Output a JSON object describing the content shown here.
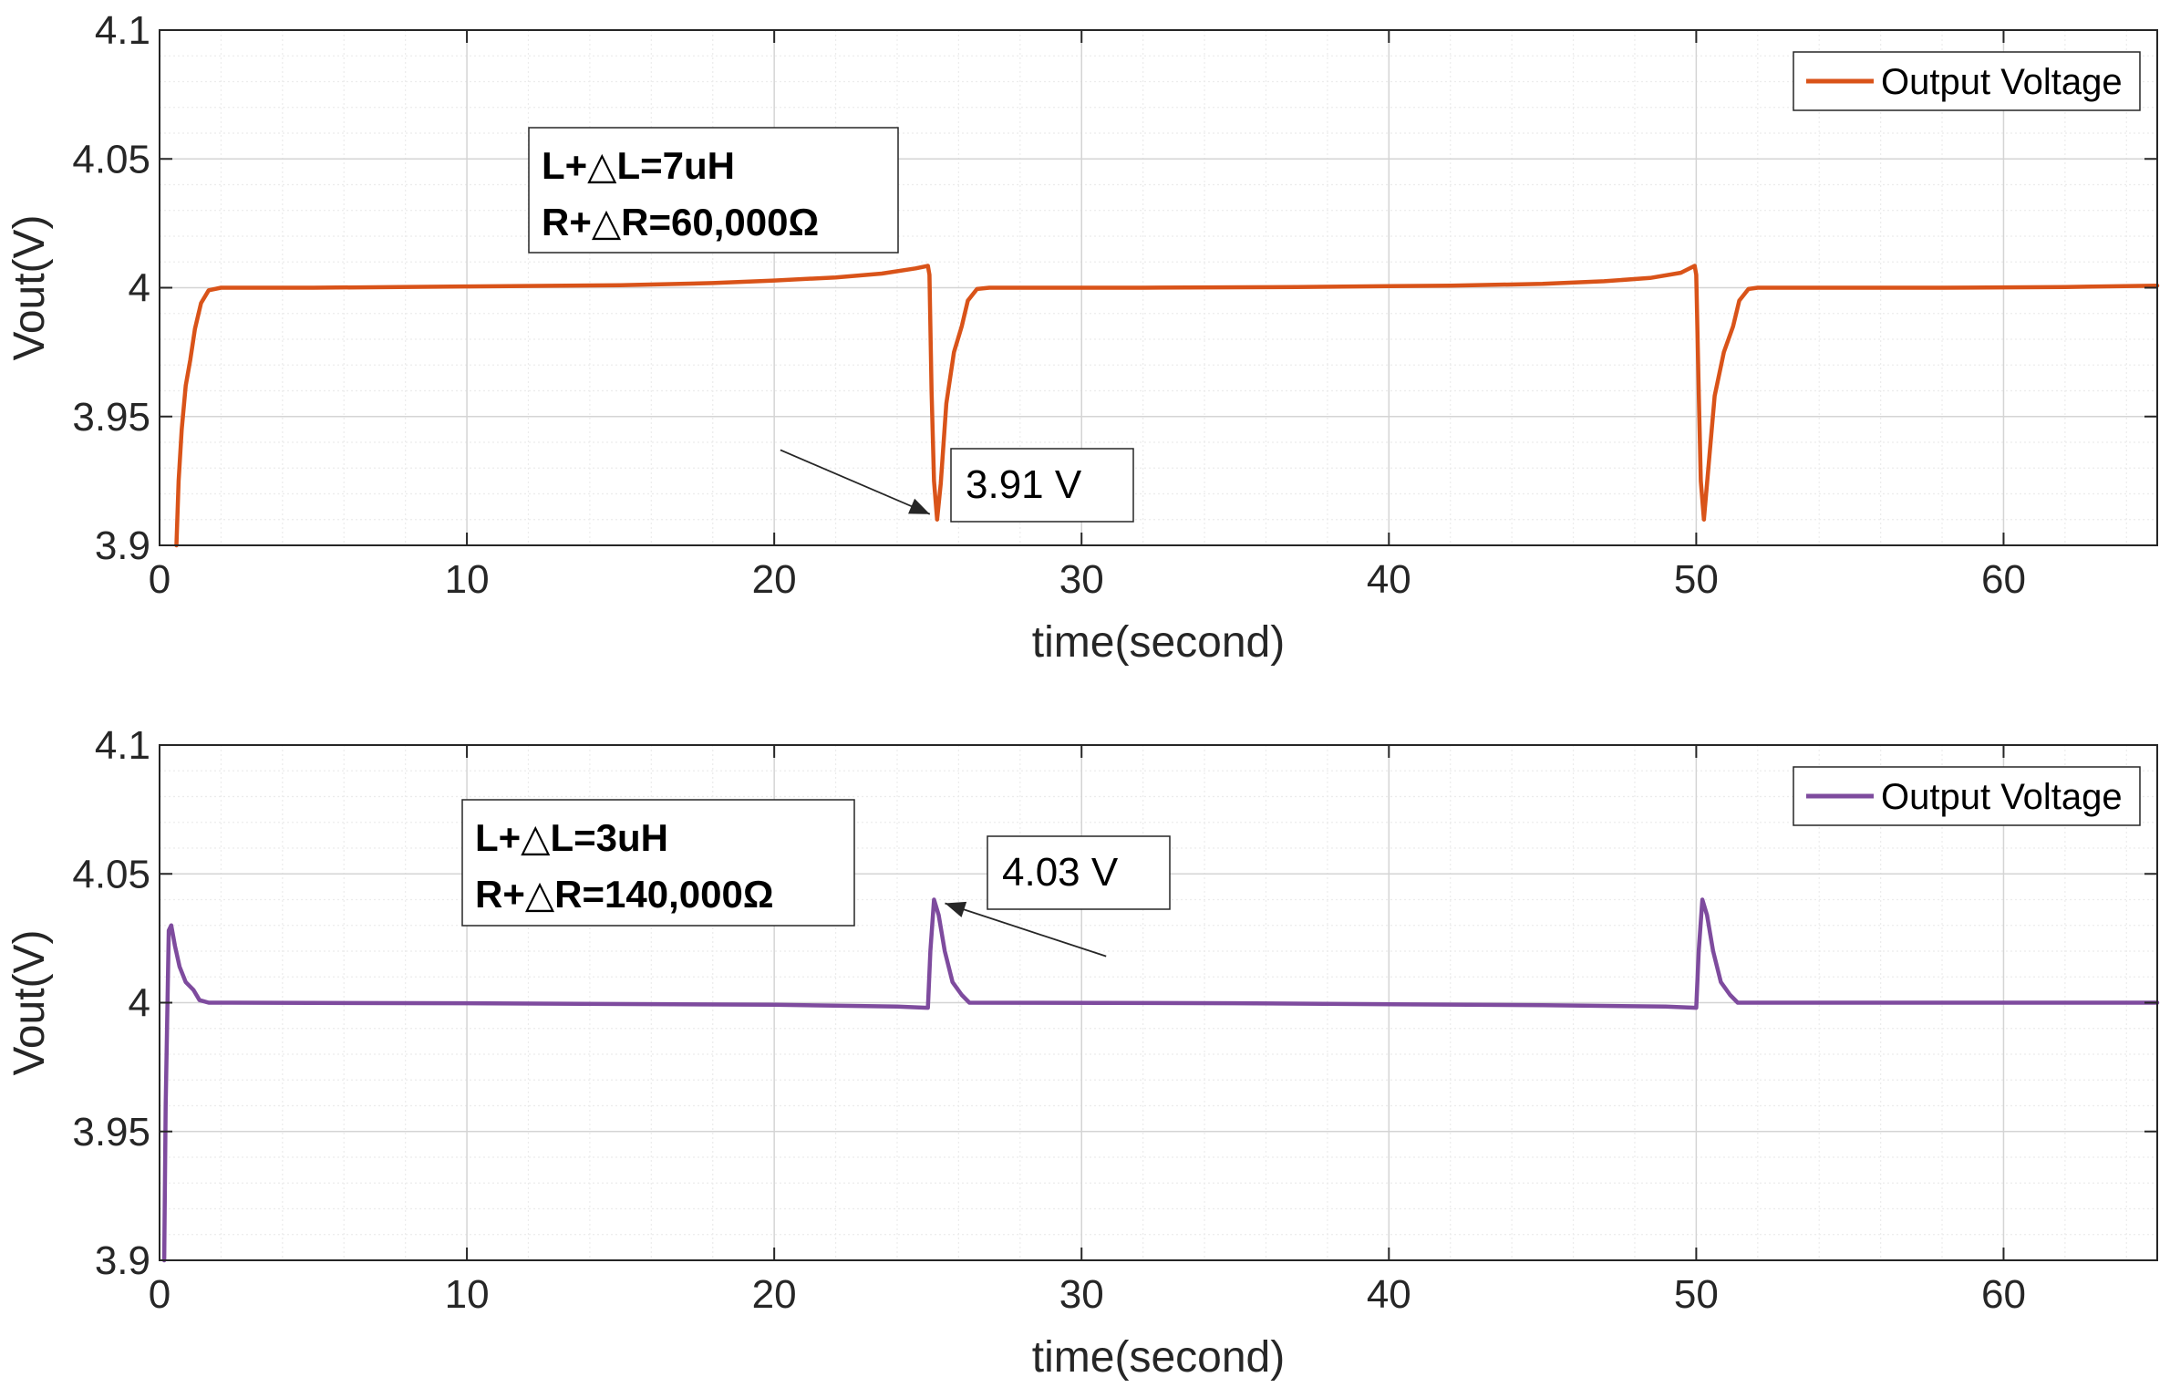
{
  "chart_data": [
    {
      "type": "line",
      "xlabel": "time(second)",
      "ylabel": "Vout(V)",
      "xlim": [
        0,
        65
      ],
      "ylim": [
        3.9,
        4.1
      ],
      "xticks": [
        0,
        10,
        20,
        30,
        40,
        50,
        60
      ],
      "xtick_labels": [
        "0",
        "10",
        "20",
        "30",
        "40",
        "50",
        "60"
      ],
      "yticks": [
        3.9,
        3.95,
        4.0,
        4.05,
        4.1
      ],
      "ytick_labels": [
        "3.9",
        "3.95",
        "4",
        "4.05",
        "4.1"
      ],
      "grid": true,
      "minor_grid": true,
      "legend": {
        "position": "top-right",
        "entries": [
          "Output Voltage"
        ]
      },
      "series": [
        {
          "name": "Output Voltage",
          "color": "#D95319",
          "points": [
            [
              0.55,
              3.9
            ],
            [
              0.62,
              3.925
            ],
            [
              0.72,
              3.945
            ],
            [
              0.85,
              3.962
            ],
            [
              1.0,
              3.972
            ],
            [
              1.15,
              3.984
            ],
            [
              1.35,
              3.994
            ],
            [
              1.6,
              3.999
            ],
            [
              2.0,
              4.0
            ],
            [
              5,
              4.0
            ],
            [
              10,
              4.0005
            ],
            [
              15,
              4.001
            ],
            [
              18,
              4.0018
            ],
            [
              20,
              4.0028
            ],
            [
              22,
              4.004
            ],
            [
              23.5,
              4.0055
            ],
            [
              24.6,
              4.0075
            ],
            [
              25.0,
              4.0085
            ],
            [
              25.05,
              4.005
            ],
            [
              25.12,
              3.96
            ],
            [
              25.2,
              3.925
            ],
            [
              25.3,
              3.91
            ],
            [
              25.42,
              3.924
            ],
            [
              25.6,
              3.955
            ],
            [
              25.85,
              3.975
            ],
            [
              26.1,
              3.985
            ],
            [
              26.3,
              3.995
            ],
            [
              26.6,
              3.9995
            ],
            [
              27,
              4.0
            ],
            [
              32,
              4.0
            ],
            [
              37,
              4.0003
            ],
            [
              42,
              4.0008
            ],
            [
              45,
              4.0015
            ],
            [
              47,
              4.0025
            ],
            [
              48.5,
              4.0038
            ],
            [
              49.5,
              4.0058
            ],
            [
              49.95,
              4.0085
            ],
            [
              50.0,
              4.005
            ],
            [
              50.08,
              3.96
            ],
            [
              50.15,
              3.925
            ],
            [
              50.25,
              3.91
            ],
            [
              50.38,
              3.928
            ],
            [
              50.6,
              3.958
            ],
            [
              50.9,
              3.975
            ],
            [
              51.2,
              3.985
            ],
            [
              51.4,
              3.995
            ],
            [
              51.7,
              3.9995
            ],
            [
              52,
              4.0
            ],
            [
              58,
              4.0
            ],
            [
              62,
              4.0003
            ],
            [
              65,
              4.0008
            ]
          ]
        }
      ],
      "annotations": [
        {
          "lines": [
            "L+△L=7uH",
            "R+△R=60,000Ω"
          ],
          "bold": true
        },
        {
          "text": "3.91 V",
          "point": [
            25.3,
            3.91
          ],
          "from": [
            20.2,
            3.937
          ]
        }
      ]
    },
    {
      "type": "line",
      "xlabel": "time(second)",
      "ylabel": "Vout(V)",
      "xlim": [
        0,
        65
      ],
      "ylim": [
        3.9,
        4.1
      ],
      "xticks": [
        0,
        10,
        20,
        30,
        40,
        50,
        60
      ],
      "xtick_labels": [
        "0",
        "10",
        "20",
        "30",
        "40",
        "50",
        "60"
      ],
      "yticks": [
        3.9,
        3.95,
        4.0,
        4.05,
        4.1
      ],
      "ytick_labels": [
        "3.9",
        "3.95",
        "4",
        "4.05",
        "4.1"
      ],
      "grid": true,
      "minor_grid": true,
      "legend": {
        "position": "top-right",
        "entries": [
          "Output Voltage"
        ]
      },
      "series": [
        {
          "name": "Output Voltage",
          "color": "#7E4B9E",
          "points": [
            [
              0.15,
              3.9
            ],
            [
              0.2,
              3.96
            ],
            [
              0.3,
              4.028
            ],
            [
              0.38,
              4.03
            ],
            [
              0.5,
              4.022
            ],
            [
              0.65,
              4.014
            ],
            [
              0.85,
              4.008
            ],
            [
              1.1,
              4.005
            ],
            [
              1.3,
              4.001
            ],
            [
              1.6,
              4.0
            ],
            [
              10,
              3.9998
            ],
            [
              20,
              3.9992
            ],
            [
              24,
              3.9985
            ],
            [
              25.0,
              3.998
            ],
            [
              25.08,
              4.02
            ],
            [
              25.2,
              4.04
            ],
            [
              25.35,
              4.034
            ],
            [
              25.55,
              4.02
            ],
            [
              25.8,
              4.008
            ],
            [
              26.1,
              4.003
            ],
            [
              26.35,
              4.0
            ],
            [
              35,
              3.9998
            ],
            [
              45,
              3.999
            ],
            [
              49,
              3.9985
            ],
            [
              50.0,
              3.998
            ],
            [
              50.08,
              4.02
            ],
            [
              50.2,
              4.04
            ],
            [
              50.35,
              4.034
            ],
            [
              50.55,
              4.02
            ],
            [
              50.8,
              4.008
            ],
            [
              51.1,
              4.003
            ],
            [
              51.35,
              4.0
            ],
            [
              58,
              4.0
            ],
            [
              65,
              4.0
            ]
          ]
        }
      ],
      "annotations": [
        {
          "lines": [
            "L+△L=3uH",
            "R+△R=140,000Ω"
          ],
          "bold": true
        },
        {
          "text": "4.03 V",
          "point": [
            25.2,
            4.04
          ],
          "from": [
            30.8,
            4.018
          ]
        }
      ]
    }
  ]
}
